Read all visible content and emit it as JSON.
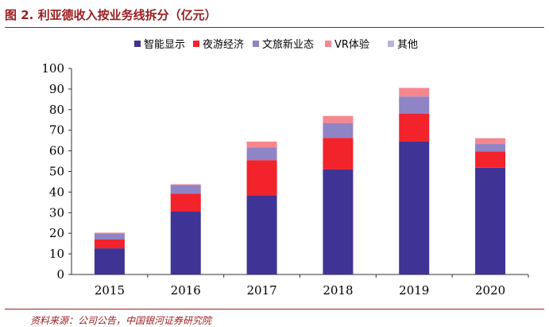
{
  "figure": {
    "title": "图 2. 利亚德收入按业务线拆分（亿元）",
    "source": "资料来源：公司公告，中国银河证券研究院"
  },
  "chart_data": {
    "type": "bar",
    "stacked": true,
    "title": "利亚德收入按业务线拆分（亿元）",
    "xlabel": "",
    "ylabel": "",
    "ylim": [
      0,
      100
    ],
    "yticks": [
      0,
      10,
      20,
      30,
      40,
      50,
      60,
      70,
      80,
      90,
      100
    ],
    "categories": [
      "2015",
      "2016",
      "2017",
      "2018",
      "2019",
      "2020"
    ],
    "legend_position": "top",
    "series": [
      {
        "name": "智能显示",
        "color": "#3f3495",
        "values": [
          12.7,
          30.5,
          38.5,
          51.0,
          64.5,
          51.8
        ]
      },
      {
        "name": "夜游经济",
        "color": "#f2232a",
        "values": [
          4.3,
          8.8,
          17.0,
          15.3,
          13.5,
          7.9
        ]
      },
      {
        "name": "文旅新业态",
        "color": "#8f84c5",
        "values": [
          3.0,
          4.2,
          6.2,
          7.2,
          8.4,
          3.6
        ]
      },
      {
        "name": "VR体验",
        "color": "#f7868e",
        "values": [
          0.3,
          0.3,
          2.8,
          3.4,
          4.1,
          2.8
        ]
      },
      {
        "name": "其他",
        "color": "#bcb3dc",
        "values": [
          0.0,
          0.0,
          0.0,
          0.1,
          0.1,
          0.1
        ]
      }
    ]
  }
}
